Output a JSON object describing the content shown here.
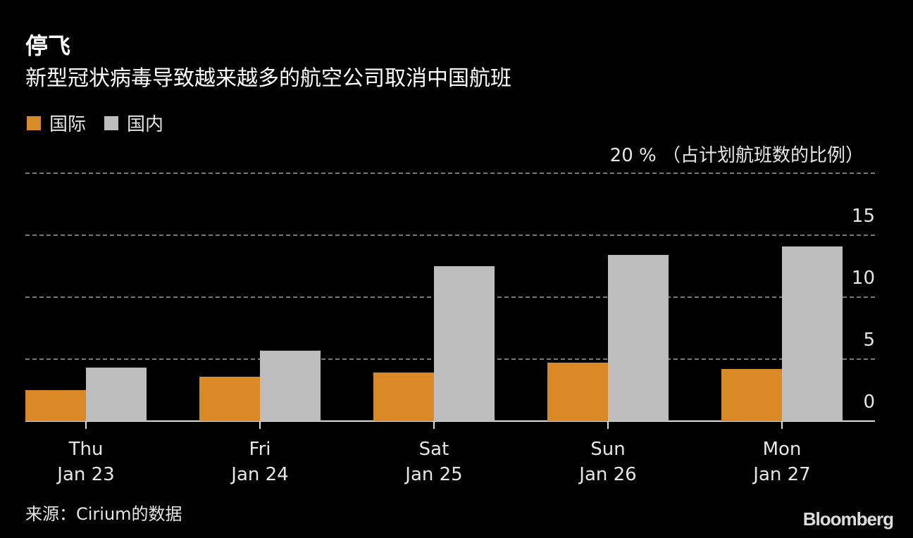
{
  "header": {
    "title": "停飞",
    "subtitle": "新型冠状病毒导致越来越多的航空公司取消中国航班"
  },
  "legend": [
    {
      "label": "国际",
      "color": "#d98a26"
    },
    {
      "label": "国内",
      "color": "#bdbdbd"
    }
  ],
  "axis": {
    "unit_label": "20 %  （占计划航班数的比例）",
    "ticks": [
      "15",
      "10",
      "5",
      "0"
    ]
  },
  "x_labels": [
    {
      "day": "Thu",
      "date": "Jan 23"
    },
    {
      "day": "Fri",
      "date": "Jan 24"
    },
    {
      "day": "Sat",
      "date": "Jan 25"
    },
    {
      "day": "Sun",
      "date": "Jan 26"
    },
    {
      "day": "Mon",
      "date": "Jan 27"
    }
  ],
  "footer": {
    "source": "来源：Cirium的数据",
    "brand": "Bloomberg"
  },
  "chart_data": {
    "type": "bar",
    "title": "停飞",
    "subtitle": "新型冠状病毒导致越来越多的航空公司取消中国航班",
    "categories": [
      "Thu Jan 23",
      "Fri Jan 24",
      "Sat Jan 25",
      "Sun Jan 26",
      "Mon Jan 27"
    ],
    "series": [
      {
        "name": "国际",
        "color": "#d98a26",
        "values": [
          2.5,
          3.6,
          3.9,
          4.7,
          4.2
        ]
      },
      {
        "name": "国内",
        "color": "#bdbdbd",
        "values": [
          4.3,
          5.7,
          12.5,
          13.4,
          14.1
        ]
      }
    ],
    "xlabel": "",
    "ylabel": "% （占计划航班数的比例）",
    "ylim": [
      0,
      20
    ],
    "yticks": [
      0,
      5,
      10,
      15,
      20
    ],
    "grid": true,
    "legend_position": "top-left",
    "source": "来源：Cirium的数据"
  }
}
